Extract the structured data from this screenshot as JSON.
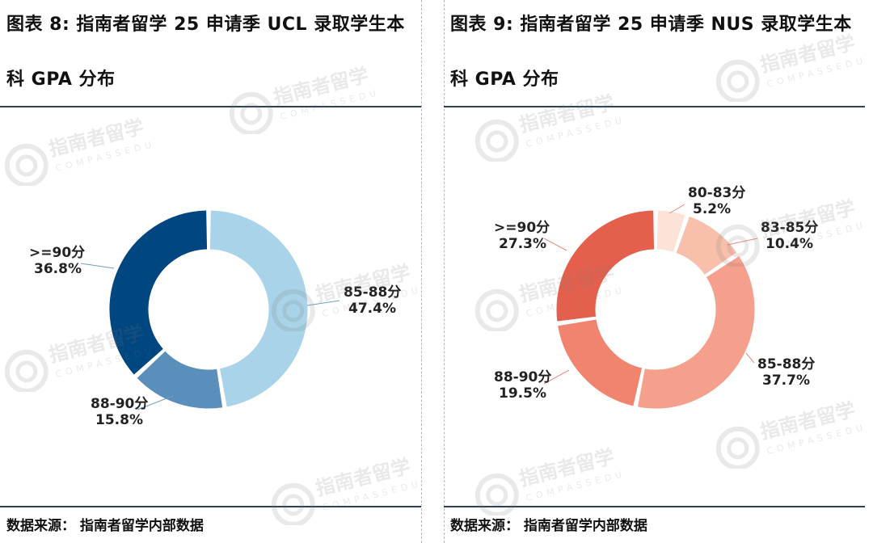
{
  "panels": [
    {
      "title_line1": "图表 8: 指南者留学 25 申请季 UCL 录取学生本",
      "title_line2": "科 GPA 分布",
      "source": "数据来源：  指南者留学内部数据",
      "chart_data": {
        "type": "pie",
        "donut": true,
        "categories": [
          "85-88分",
          "88-90分",
          ">=90分"
        ],
        "values": [
          47.4,
          15.8,
          36.8
        ],
        "value_labels": [
          "47.4%",
          "15.8%",
          "36.8%"
        ],
        "colors": [
          "#a9d3e8",
          "#5b8fbb",
          "#004680"
        ],
        "start_angle_deg": 0
      }
    },
    {
      "title_line1": "图表 9: 指南者留学 25 申请季 NUS 录取学生本",
      "title_line2": "科 GPA 分布",
      "source": "数据来源：  指南者留学内部数据",
      "chart_data": {
        "type": "pie",
        "donut": true,
        "categories": [
          "80-83分",
          "83-85分",
          "85-88分",
          "88-90分",
          ">=90分"
        ],
        "values": [
          5.2,
          10.4,
          37.7,
          19.5,
          27.3
        ],
        "value_labels": [
          "5.2%",
          "10.4%",
          "37.7%",
          "19.5%",
          "27.3%"
        ],
        "colors": [
          "#fde2d7",
          "#f8c0ab",
          "#f5a08c",
          "#f0846f",
          "#e5604c"
        ],
        "start_angle_deg": 0
      }
    }
  ],
  "watermark": {
    "brand": "指南者留学",
    "sub": "COMPASSEDU"
  }
}
